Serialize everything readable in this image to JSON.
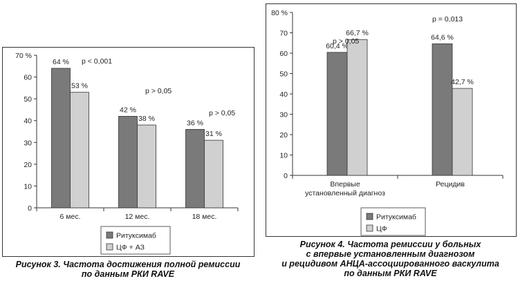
{
  "figures": [
    {
      "caption": [
        "Рисунок 3. Частота достижения полной ремиссии",
        "по данным РКИ RAVE"
      ],
      "legend": [
        {
          "label": "Ритуксимаб",
          "color": "#7a7a7a"
        },
        {
          "label": "ЦФ + АЗ",
          "color": "#d0d0d0"
        }
      ]
    },
    {
      "caption": [
        "Рисунок 4. Частота ремиссии у больных",
        "с впервые установленным диагнозом",
        "и рецидивом АНЦА-ассоциированного васкулита",
        "по данным РКИ RAVE"
      ],
      "legend": [
        {
          "label": "Ритуксимаб",
          "color": "#7a7a7a"
        },
        {
          "label": "ЦФ",
          "color": "#d0d0d0"
        }
      ]
    }
  ],
  "chart_data": [
    {
      "type": "bar",
      "categories": [
        "6 мес.",
        "12 мес.",
        "18 мес."
      ],
      "series": [
        {
          "name": "Ритуксимаб",
          "values": [
            64,
            42,
            36
          ],
          "labels": [
            "64 %",
            "42 %",
            "36 %"
          ],
          "color": "#7a7a7a"
        },
        {
          "name": "ЦФ + АЗ",
          "values": [
            53,
            38,
            31
          ],
          "labels": [
            "53 %",
            "38 %",
            "31 %"
          ],
          "color": "#d0d0d0"
        }
      ],
      "annotations": [
        "p < 0,001",
        "p > 0,05",
        "p > 0,05"
      ],
      "yticks": [
        "0",
        "10",
        "20",
        "30",
        "40",
        "50",
        "60",
        "70 %"
      ],
      "ylim": [
        0,
        70
      ],
      "grid": false,
      "legend_position": "bottom"
    },
    {
      "type": "bar",
      "categories": [
        [
          "Впервые",
          "установленный диагноз"
        ],
        [
          "Рецидив"
        ]
      ],
      "series": [
        {
          "name": "Ритуксимаб",
          "values": [
            60.4,
            64.6
          ],
          "labels": [
            "60,4 %",
            "64,6 %"
          ],
          "color": "#7a7a7a"
        },
        {
          "name": "ЦФ",
          "values": [
            66.7,
            42.7
          ],
          "labels": [
            "66,7 %",
            "42,7 %"
          ],
          "color": "#d0d0d0"
        }
      ],
      "annotations": [
        "p > 0,05",
        "p = 0,013"
      ],
      "yticks": [
        "0",
        "10",
        "20",
        "30",
        "40",
        "50",
        "60",
        "70",
        "80 %"
      ],
      "ylim": [
        0,
        80
      ],
      "grid": false,
      "legend_position": "bottom"
    }
  ]
}
